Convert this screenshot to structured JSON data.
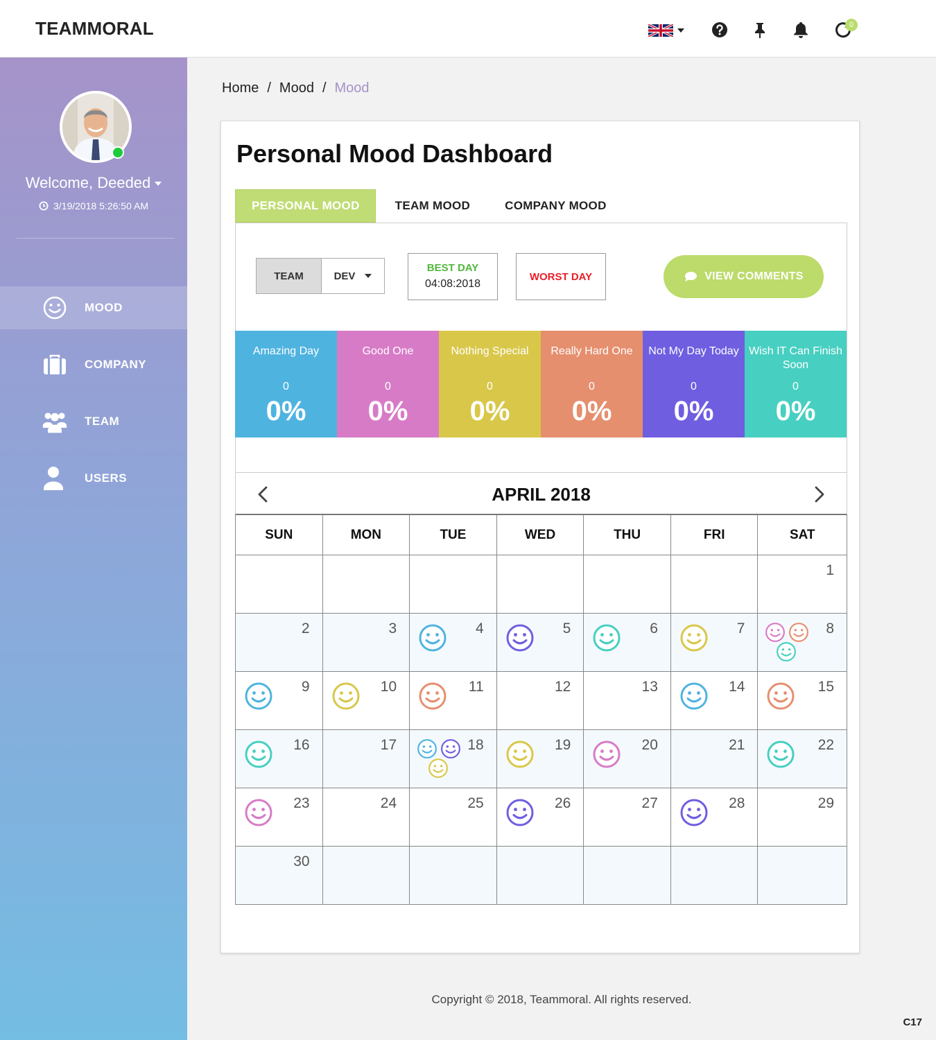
{
  "app": {
    "brand": "TEAMMORAL",
    "notification_count": "0"
  },
  "topbar": {
    "icons": [
      "uk-flag-icon",
      "help-icon",
      "pin-icon",
      "bell-icon",
      "refresh-icon"
    ]
  },
  "user": {
    "welcome": "Welcome, Deeded",
    "last_login": "3/19/2018 5:26:50 AM",
    "status": "online"
  },
  "sidebar": {
    "items": [
      {
        "label": "MOOD",
        "icon": "smile-icon",
        "active": true
      },
      {
        "label": "COMPANY",
        "icon": "briefcase-icon",
        "active": false
      },
      {
        "label": "TEAM",
        "icon": "team-icon",
        "active": false
      },
      {
        "label": "USERS",
        "icon": "user-icon",
        "active": false
      }
    ]
  },
  "breadcrumb": {
    "items": [
      "Home",
      "Mood",
      "Mood"
    ],
    "sep": "/"
  },
  "dashboard": {
    "title": "Personal Mood Dashboard",
    "tabs": [
      "PERSONAL MOOD",
      "TEAM MOOD",
      "COMPANY MOOD"
    ],
    "active_tab": 0,
    "filter": {
      "label": "TEAM",
      "value": "DEV"
    },
    "best_day": {
      "label": "BEST DAY",
      "value": "04:08:2018"
    },
    "worst_day": {
      "label": "WORST DAY"
    },
    "view_comments": "VIEW COMMENTS"
  },
  "moods": [
    {
      "label": "Amazing Day",
      "count": "0",
      "percent": "0%",
      "color": "#4fb3e0"
    },
    {
      "label": "Good One",
      "count": "0",
      "percent": "0%",
      "color": "#d77bc7"
    },
    {
      "label": "Nothing Special",
      "count": "0",
      "percent": "0%",
      "color": "#d9c74a"
    },
    {
      "label": "Really Hard One",
      "count": "0",
      "percent": "0%",
      "color": "#e58f6f"
    },
    {
      "label": "Not My Day Today",
      "count": "0",
      "percent": "0%",
      "color": "#6f5ee0"
    },
    {
      "label": "Wish IT Can Finish Soon",
      "count": "0",
      "percent": "0%",
      "color": "#47cfc1"
    }
  ],
  "calendar": {
    "title": "APRIL 2018",
    "weekdays": [
      "SUN",
      "MON",
      "TUE",
      "WED",
      "THU",
      "FRI",
      "SAT"
    ],
    "weeks": [
      [
        null,
        null,
        null,
        null,
        null,
        null,
        {
          "day": "1",
          "moods": []
        }
      ],
      [
        {
          "day": "2",
          "moods": []
        },
        {
          "day": "3",
          "moods": []
        },
        {
          "day": "4",
          "moods": [
            "#4fb3e0"
          ]
        },
        {
          "day": "5",
          "moods": [
            "#6f5ee0"
          ]
        },
        {
          "day": "6",
          "moods": [
            "#47cfc1"
          ]
        },
        {
          "day": "7",
          "moods": [
            "#d9c74a"
          ]
        },
        {
          "day": "8",
          "moods": [
            "#d77bc7",
            "#e58f6f",
            "#47cfc1"
          ]
        }
      ],
      [
        {
          "day": "9",
          "moods": [
            "#4fb3e0"
          ]
        },
        {
          "day": "10",
          "moods": [
            "#d9c74a"
          ]
        },
        {
          "day": "11",
          "moods": [
            "#e58f6f"
          ]
        },
        {
          "day": "12",
          "moods": []
        },
        {
          "day": "13",
          "moods": []
        },
        {
          "day": "14",
          "moods": [
            "#4fb3e0"
          ]
        },
        {
          "day": "15",
          "moods": [
            "#e58f6f"
          ]
        }
      ],
      [
        {
          "day": "16",
          "moods": [
            "#47cfc1"
          ]
        },
        {
          "day": "17",
          "moods": []
        },
        {
          "day": "18",
          "moods": [
            "#4fb3e0",
            "#6f5ee0",
            "#d9c74a"
          ]
        },
        {
          "day": "19",
          "moods": [
            "#d9c74a"
          ]
        },
        {
          "day": "20",
          "moods": [
            "#d77bc7"
          ]
        },
        {
          "day": "21",
          "moods": []
        },
        {
          "day": "22",
          "moods": [
            "#47cfc1"
          ]
        }
      ],
      [
        {
          "day": "23",
          "moods": [
            "#d77bc7"
          ]
        },
        {
          "day": "24",
          "moods": []
        },
        {
          "day": "25",
          "moods": []
        },
        {
          "day": "26",
          "moods": [
            "#6f5ee0"
          ]
        },
        {
          "day": "27",
          "moods": []
        },
        {
          "day": "28",
          "moods": [
            "#6f5ee0"
          ]
        },
        {
          "day": "29",
          "moods": []
        }
      ],
      [
        {
          "day": "30",
          "moods": []
        },
        null,
        null,
        null,
        null,
        null,
        null
      ]
    ]
  },
  "footer": {
    "copyright": "Copyright © 2018, Teammoral. All rights reserved.",
    "corner": "C17"
  }
}
